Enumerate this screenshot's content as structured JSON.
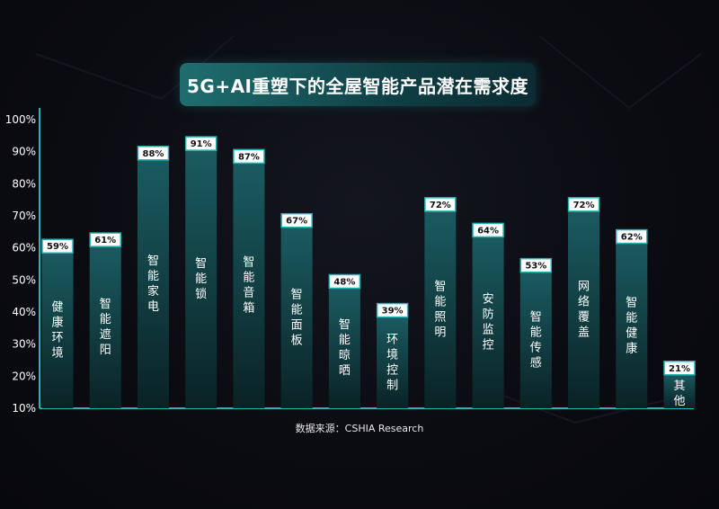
{
  "chart_data": {
    "type": "bar",
    "title": "5G+AI重塑下的全屋智能产品潜在需求度",
    "source": "数据来源：CSHIA Research",
    "categories": [
      "健康环境",
      "智能遮阳",
      "智能家电",
      "智能锁",
      "智能音箱",
      "智能面板",
      "智能晾晒",
      "环境控制",
      "智能照明",
      "安防监控",
      "智能传感",
      "网络覆盖",
      "智能健康",
      "其他"
    ],
    "values": [
      59,
      61,
      88,
      91,
      87,
      67,
      48,
      39,
      72,
      64,
      53,
      72,
      62,
      21
    ],
    "data_labels": [
      "59%",
      "61%",
      "88%",
      "91%",
      "87%",
      "67%",
      "48%",
      "39%",
      "72%",
      "64%",
      "53%",
      "72%",
      "62%",
      "21%"
    ],
    "ytick_labels": [
      "100%",
      "90%",
      "80%",
      "70%",
      "60%",
      "50%",
      "40%",
      "30%",
      "20%",
      "10%"
    ],
    "ylim": [
      10,
      100
    ],
    "accent_color": "#25b5b5",
    "bar_color_top": "#1a5c60",
    "bar_color_bottom": "#0a2226"
  }
}
